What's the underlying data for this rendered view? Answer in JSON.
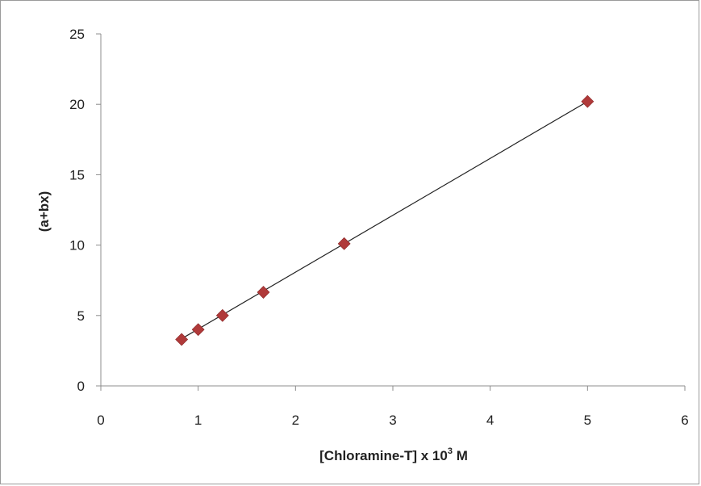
{
  "chart_data": {
    "type": "scatter",
    "title": "",
    "xlabel": "[Chloramine-T] x 10",
    "xlabel_sup": "3",
    "xlabel_tail": " M",
    "ylabel": "(a+bx)",
    "xlim": [
      0,
      6
    ],
    "ylim": [
      0,
      25
    ],
    "xticks": [
      0,
      1,
      2,
      3,
      4,
      5,
      6
    ],
    "yticks": [
      0,
      5,
      10,
      15,
      20,
      25
    ],
    "grid": false,
    "legend": "none",
    "marker": "diamond",
    "marker_color": "#b03a3a",
    "trendline_color": "#222222",
    "series": [
      {
        "x": [
          0.83,
          1.0,
          1.25,
          1.67,
          2.5,
          5.0
        ],
        "y": [
          3.3,
          4.0,
          5.0,
          6.65,
          10.1,
          20.2
        ]
      }
    ],
    "trendline": {
      "x": [
        0.83,
        5.0
      ],
      "y": [
        3.35,
        20.2
      ]
    }
  }
}
